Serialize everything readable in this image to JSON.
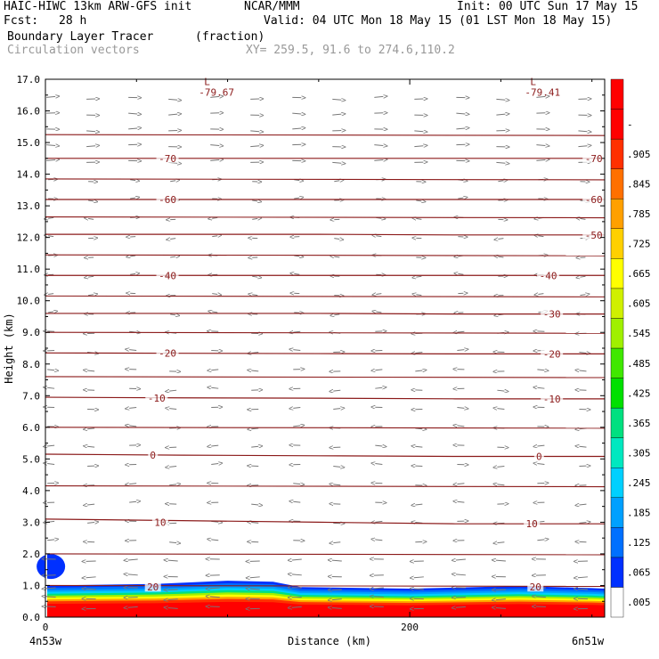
{
  "header": {
    "model": "HAIC-HIWC 13km ARW-GFS init",
    "org": "NCAR/MMM",
    "init": "Init: 00 UTC Sun 17 May 15",
    "fcst_label": "Fcst:",
    "fcst_value": "28 h",
    "valid": "Valid: 04 UTC Mon 18 May 15 (01 LST Mon 18 May 15)",
    "field": "Boundary Layer Tracer",
    "field_units": "(fraction)",
    "overlay": "Circulation vectors",
    "xy": "XY= 259.5, 91.6 to 274.6,110.2"
  },
  "chart_data": {
    "type": "heatmap",
    "title": "Boundary Layer Tracer",
    "xlabel": "Distance (km)",
    "ylabel": "Height (km)",
    "xlim": [
      0,
      307
    ],
    "ylim": [
      0,
      17
    ],
    "x_ticks": [
      {
        "value": 0,
        "label": "0"
      },
      {
        "value": 200,
        "label": "200"
      }
    ],
    "x_end_labels": {
      "left": "4n53w",
      "right": "6n51w"
    },
    "y_ticks": [
      "0.0",
      "1.0",
      "2.0",
      "3.0",
      "4.0",
      "5.0",
      "6.0",
      "7.0",
      "8.0",
      "9.0",
      "10.0",
      "11.0",
      "12.0",
      "13.0",
      "14.0",
      "15.0",
      "16.0",
      "17.0"
    ],
    "colorbar": {
      "labels": [
        ".005",
        ".065",
        ".125",
        ".185",
        ".245",
        ".305",
        ".365",
        ".425",
        ".485",
        ".545",
        ".605",
        ".665",
        ".725",
        ".785",
        ".845",
        ".905",
        "-"
      ],
      "colors": [
        "#ffffff",
        "#0030ff",
        "#0070ff",
        "#00a0ff",
        "#00d0ff",
        "#00e8c0",
        "#00e080",
        "#00e000",
        "#40e800",
        "#a0f000",
        "#d0f000",
        "#ffff00",
        "#ffd000",
        "#ffa000",
        "#ff7000",
        "#ff3000",
        "#ff0000",
        "#ff0000"
      ]
    },
    "contours": {
      "name": "temperature",
      "color": "#8b1a1a",
      "lines": [
        {
          "level": 10,
          "heights": [
            3.1,
            3.05,
            3.0,
            2.95,
            2.95
          ]
        },
        {
          "level": 0,
          "heights": [
            5.15,
            5.12,
            5.1,
            5.08,
            5.08
          ]
        },
        {
          "level": -10,
          "heights": [
            6.95,
            6.93,
            6.92,
            6.9,
            6.9
          ]
        },
        {
          "level": -20,
          "heights": [
            8.35,
            8.34,
            8.33,
            8.32,
            8.32
          ]
        },
        {
          "level": -30,
          "heights": [
            9.6,
            9.6,
            9.6,
            9.58,
            9.58
          ]
        },
        {
          "level": -40,
          "heights": [
            10.8,
            10.8,
            10.8,
            10.8,
            10.8
          ]
        },
        {
          "level": -50,
          "heights": [
            12.1,
            12.1,
            12.1,
            12.08,
            12.08
          ]
        },
        {
          "level": -60,
          "heights": [
            13.2,
            13.2,
            13.2,
            13.2,
            13.2
          ]
        },
        {
          "level": -70,
          "heights": [
            14.5,
            14.5,
            14.5,
            14.5,
            14.5
          ]
        }
      ],
      "extra_lines": [
        1.0,
        2.0,
        4.15,
        6.0,
        7.6,
        9.0,
        10.15,
        11.45,
        12.65,
        13.85,
        15.25
      ],
      "labeled": [
        {
          "text": "10",
          "x": 63,
          "y": 3.0
        },
        {
          "text": "10",
          "x": 267,
          "y": 2.95
        },
        {
          "text": "0",
          "x": 59,
          "y": 5.12
        },
        {
          "text": "0",
          "x": 271,
          "y": 5.08
        },
        {
          "text": "-10",
          "x": 61,
          "y": 6.93
        },
        {
          "text": "-10",
          "x": 278,
          "y": 6.9
        },
        {
          "text": "-20",
          "x": 67,
          "y": 8.34
        },
        {
          "text": "-20",
          "x": 278,
          "y": 8.32
        },
        {
          "text": "-30",
          "x": 278,
          "y": 9.58
        },
        {
          "text": "-40",
          "x": 67,
          "y": 10.8
        },
        {
          "text": "-40",
          "x": 276,
          "y": 10.8
        },
        {
          "text": "-50",
          "x": 301,
          "y": 12.08
        },
        {
          "text": "-60",
          "x": 67,
          "y": 13.2
        },
        {
          "text": "-60",
          "x": 301,
          "y": 13.2
        },
        {
          "text": "-70",
          "x": 67,
          "y": 14.5
        },
        {
          "text": "-70",
          "x": 301,
          "y": 14.5
        },
        {
          "text": "20",
          "x": 59,
          "y": 0.95
        },
        {
          "text": "20",
          "x": 269,
          "y": 0.95
        }
      ],
      "extrema": [
        {
          "mark": "L",
          "value": "-79.67",
          "x": 93,
          "y": 16.65
        },
        {
          "mark": "L",
          "value": "-79.41",
          "x": 272,
          "y": 16.65
        }
      ]
    },
    "tracer_top": [
      {
        "x": 0,
        "h": 1.0
      },
      {
        "x": 60,
        "h": 1.05
      },
      {
        "x": 100,
        "h": 1.15
      },
      {
        "x": 125,
        "h": 1.12
      },
      {
        "x": 140,
        "h": 0.95
      },
      {
        "x": 200,
        "h": 0.9
      },
      {
        "x": 260,
        "h": 0.98
      },
      {
        "x": 300,
        "h": 0.92
      },
      {
        "x": 307,
        "h": 0.9
      }
    ],
    "blob": {
      "x": 3,
      "h": 1.6,
      "color": "#0030ff"
    },
    "vectors": {
      "color": "#777777",
      "columns": [
        3,
        25,
        48,
        70,
        93,
        115,
        138,
        160,
        183,
        205,
        228,
        250,
        272,
        295
      ],
      "levels": [
        16.4,
        15.9,
        15.4,
        14.9,
        14.4,
        13.8,
        13.2,
        12.6,
        12.0,
        11.4,
        10.8,
        10.2,
        9.6,
        9.0,
        8.4,
        7.8,
        7.2,
        6.6,
        6.0,
        5.4,
        4.8,
        4.2,
        3.6,
        3.0,
        2.4,
        1.8,
        1.3,
        0.9,
        0.6,
        0.3
      ]
    }
  }
}
